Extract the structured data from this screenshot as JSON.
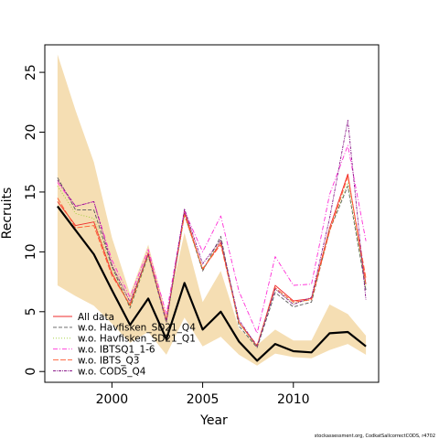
{
  "chart_data": {
    "type": "line",
    "xlabel": "Year",
    "ylabel": "Recruits",
    "xlim": [
      1996.3,
      2014.7
    ],
    "ylim": [
      -0.9,
      27.3
    ],
    "xticks": [
      2000,
      2005,
      2010
    ],
    "yticks": [
      0,
      5,
      10,
      15,
      20,
      25
    ],
    "x": [
      1997,
      1998,
      1999,
      2000,
      2001,
      2002,
      2003,
      2004,
      2005,
      2006,
      2007,
      2008,
      2009,
      2010,
      2011,
      2012,
      2013,
      2014
    ],
    "band": {
      "color": "#f5deb3",
      "upper": [
        26.5,
        21.8,
        17.5,
        11.2,
        6.5,
        10.6,
        4.8,
        11.6,
        5.8,
        8.4,
        3.6,
        2.2,
        3.5,
        2.6,
        2.6,
        5.6,
        4.8,
        3.0
      ],
      "lower": [
        7.2,
        6.3,
        5.5,
        4.0,
        2.4,
        3.3,
        1.4,
        4.5,
        2.1,
        2.9,
        1.4,
        0.5,
        1.5,
        1.2,
        1.1,
        1.8,
        2.3,
        1.4
      ]
    },
    "series": [
      {
        "name": "All data",
        "color": "#ef2b2b",
        "dash": "",
        "width": 0.9,
        "values": [
          14.2,
          12.2,
          12.5,
          8.2,
          5.5,
          9.9,
          4.2,
          13.4,
          8.5,
          10.8,
          4.1,
          2.1,
          7.2,
          5.9,
          6.1,
          12.0,
          16.5,
          7.3
        ]
      },
      {
        "name": "w.o. Havfisken_SD21_Q4",
        "color": "#595959",
        "dash": "4,2",
        "width": 0.9,
        "values": [
          16.2,
          13.5,
          13.5,
          8.8,
          5.3,
          9.7,
          4.1,
          13.2,
          8.4,
          11.3,
          3.8,
          2.0,
          6.6,
          5.4,
          5.8,
          11.8,
          15.5,
          6.8
        ]
      },
      {
        "name": "w.o. Havfisken_SD21_Q1",
        "color": "#9acd32",
        "dash": "1,2",
        "width": 0.9,
        "values": [
          15.5,
          13.2,
          12.8,
          8.6,
          5.4,
          9.6,
          4.2,
          13.0,
          8.5,
          11.0,
          4.0,
          2.1,
          6.9,
          5.7,
          6.0,
          11.8,
          15.8,
          7.0
        ]
      },
      {
        "name": "w.o. IBTSQ1_1-6",
        "color": "#ff2bd6",
        "dash": "5,2,1,2",
        "width": 0.9,
        "values": [
          15.8,
          13.8,
          14.2,
          9.3,
          6.2,
          10.2,
          4.8,
          13.4,
          10.0,
          13.0,
          6.7,
          3.2,
          9.6,
          7.2,
          7.3,
          14.8,
          18.9,
          10.9
        ]
      },
      {
        "name": "w.o. IBTS_Q3",
        "color": "#ff5a30",
        "dash": "6,2",
        "width": 0.9,
        "values": [
          14.5,
          12.0,
          12.2,
          8.0,
          5.6,
          9.8,
          4.3,
          13.1,
          8.6,
          10.6,
          4.1,
          2.2,
          7.0,
          5.8,
          6.0,
          11.7,
          16.3,
          7.8
        ]
      },
      {
        "name": "w.o. CODS_Q4",
        "color": "#8a1a8a",
        "dash": "3,1,1,1",
        "width": 0.9,
        "values": [
          16.0,
          13.8,
          14.2,
          8.9,
          5.8,
          9.8,
          4.2,
          13.6,
          9.0,
          11.0,
          4.3,
          2.1,
          6.9,
          5.6,
          6.2,
          12.8,
          21.0,
          6.0
        ]
      },
      {
        "name": "",
        "color": "#000000",
        "dash": "",
        "width": 2.2,
        "values": [
          13.8,
          11.8,
          9.8,
          6.8,
          3.9,
          6.1,
          2.7,
          7.4,
          3.5,
          5.0,
          2.5,
          0.9,
          2.3,
          1.7,
          1.6,
          3.2,
          3.3,
          2.1
        ]
      }
    ],
    "legend_position": "bottom-left",
    "grid": false,
    "footnote": "stockassessment.org, CodkatSallcorrectCODS, r4702"
  }
}
